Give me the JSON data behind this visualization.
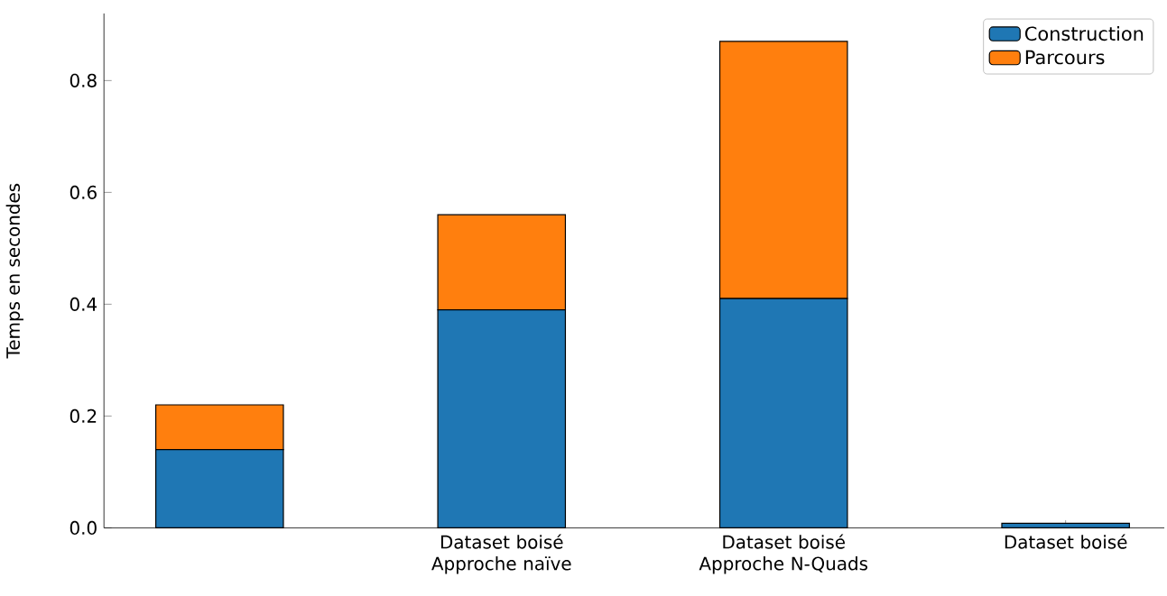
{
  "chart_data": {
    "type": "bar",
    "stacked": true,
    "ylabel": "Temps en secondes",
    "categories": [
      null,
      "Dataset boisé Approche naïve",
      "Dataset boisé Approche N-Quads",
      "Dataset boisé"
    ],
    "series": [
      {
        "name": "Construction",
        "color": "#1f77b4",
        "values": [
          0.14,
          0.39,
          0.41,
          0.008
        ]
      },
      {
        "name": "Parcours",
        "color": "#ff7f0e",
        "values": [
          0.08,
          0.17,
          0.46,
          null
        ]
      }
    ],
    "ylim": [
      0,
      0.92
    ],
    "yticks": [
      {
        "value": 0,
        "label": "0.0"
      },
      {
        "value": 0.2,
        "label": "0.2"
      },
      {
        "value": 0.4,
        "label": "0.4"
      },
      {
        "value": 0.6,
        "label": "0.6"
      },
      {
        "value": 0.8,
        "label": "0.8"
      }
    ],
    "legend": "top right"
  }
}
